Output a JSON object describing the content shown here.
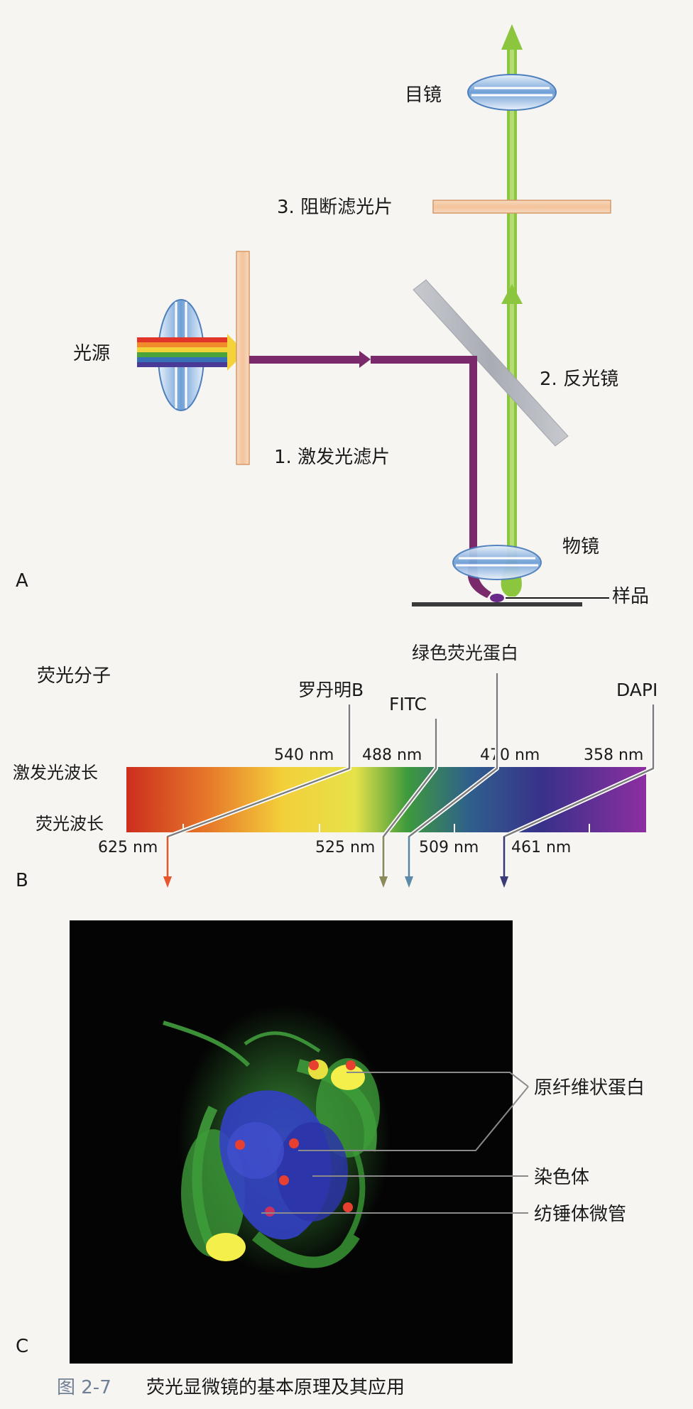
{
  "panel_a": {
    "letter": "A",
    "eyepiece": "目镜",
    "barrier_filter": "3. 阻断滤光片",
    "light_source": "光源",
    "dichroic_mirror": "2. 反光镜",
    "excitation_filter": "1. 激发光滤片",
    "objective": "物镜",
    "specimen": "样品"
  },
  "panel_b": {
    "letter": "B",
    "heading": "荧光分子",
    "row_excitation": "激发光波长",
    "row_emission": "荧光波长",
    "molecules": [
      {
        "name": "罗丹明B",
        "excitation": "540 nm",
        "emission": "625 nm",
        "arrow_color": "#e8572c"
      },
      {
        "name": "FITC",
        "excitation": "488 nm",
        "emission": "525 nm",
        "arrow_color": "#8a8a5a"
      },
      {
        "name": "绿色荧光蛋白",
        "excitation": "470 nm",
        "emission": "509 nm",
        "arrow_color": "#5a8aa8"
      },
      {
        "name": "DAPI",
        "excitation": "358 nm",
        "emission": "461 nm",
        "arrow_color": "#3a3a78"
      }
    ]
  },
  "panel_c": {
    "letter": "C",
    "labels": [
      "原纤维状蛋白",
      "染色体",
      "纺锤体微管"
    ]
  },
  "caption": {
    "figure_no": "图 2-7",
    "title": "荧光显微镜的基本原理及其应用"
  }
}
